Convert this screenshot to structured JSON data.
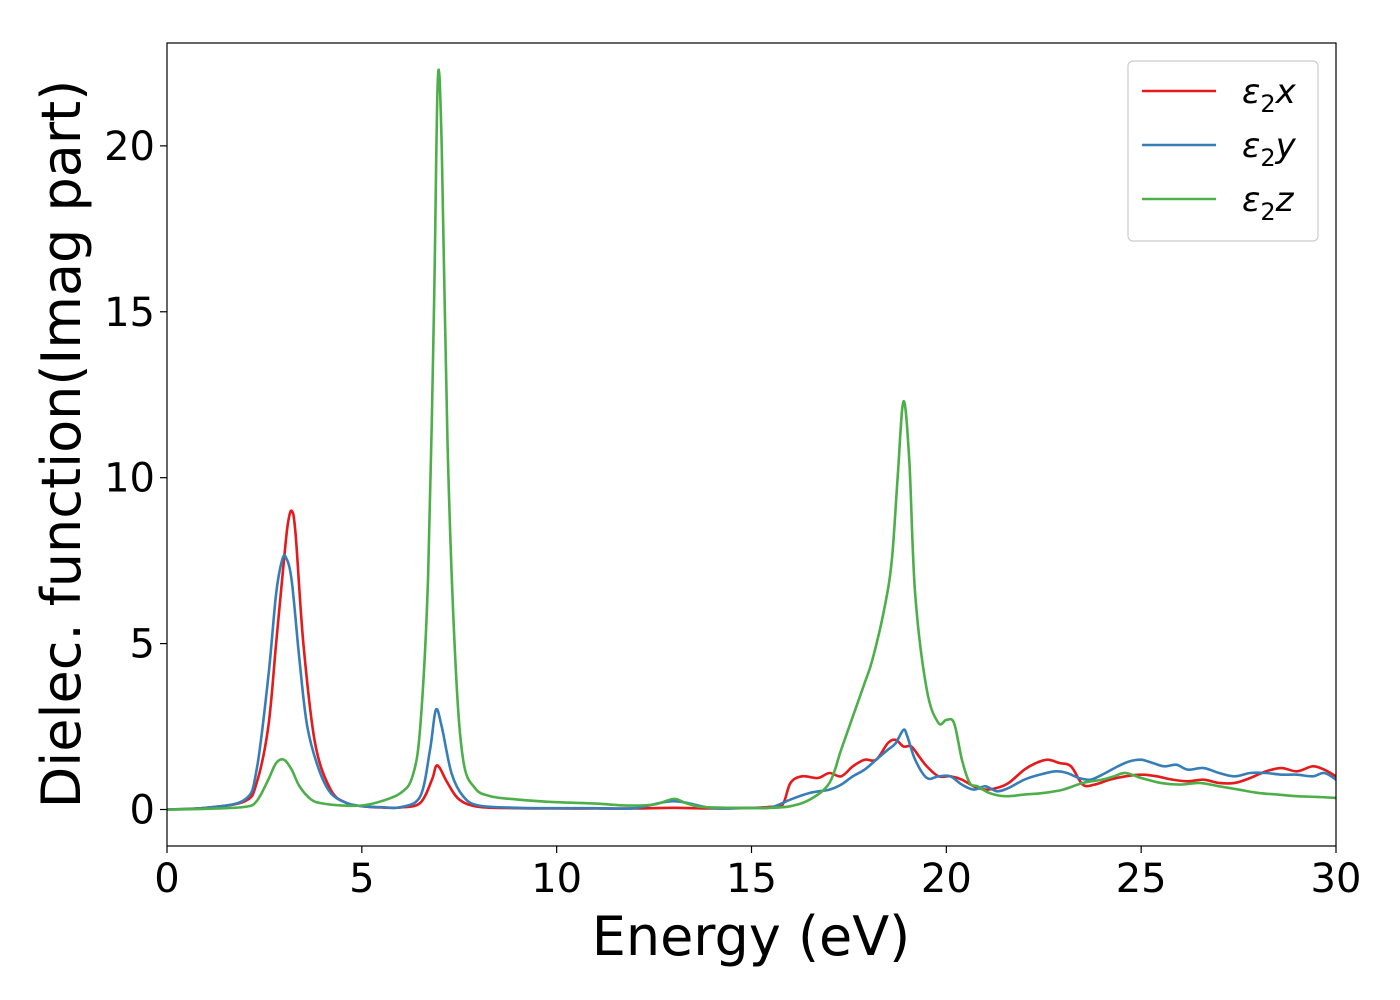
{
  "chart_data": {
    "type": "line",
    "title": "",
    "xlabel": "Energy (eV)",
    "ylabel": "Dielec. function(Imag part)",
    "xlim": [
      0,
      30
    ],
    "ylim": [
      -1.1,
      23.1
    ],
    "xticks": [
      0,
      5,
      10,
      15,
      20,
      25,
      30
    ],
    "yticks": [
      0,
      5,
      10,
      15,
      20
    ],
    "grid": false,
    "legend_position": "top-right",
    "series": [
      {
        "name": "ε₂x",
        "legend_base": "ε",
        "legend_sub": "2",
        "legend_suffix": "x",
        "color": "#e41a1c",
        "x": [
          0,
          1,
          2,
          2.3,
          2.6,
          2.8,
          3.0,
          3.1,
          3.2,
          3.3,
          3.5,
          3.8,
          4.2,
          4.6,
          5.0,
          5.5,
          6.0,
          6.5,
          6.8,
          6.9,
          7.0,
          7.2,
          7.5,
          8.0,
          9,
          10,
          11,
          12,
          13,
          14,
          15,
          15.5,
          15.8,
          16.0,
          16.3,
          16.7,
          17.0,
          17.3,
          17.6,
          17.9,
          18.2,
          18.5,
          18.7,
          18.9,
          19.1,
          19.3,
          19.5,
          19.8,
          20.1,
          20.4,
          20.7,
          21.0,
          21.3,
          21.6,
          22.0,
          22.3,
          22.6,
          22.9,
          23.2,
          23.5,
          23.8,
          24.2,
          24.6,
          25.0,
          25.4,
          25.8,
          26.2,
          26.6,
          27.0,
          27.4,
          27.8,
          28.2,
          28.6,
          29.0,
          29.4,
          29.7,
          30.0
        ],
        "y": [
          0.0,
          0.05,
          0.25,
          0.8,
          2.5,
          5.0,
          7.5,
          8.6,
          9.0,
          8.3,
          5.0,
          2.0,
          0.6,
          0.2,
          0.1,
          0.06,
          0.06,
          0.2,
          0.9,
          1.3,
          1.25,
          0.8,
          0.3,
          0.08,
          0.04,
          0.03,
          0.03,
          0.03,
          0.05,
          0.03,
          0.05,
          0.08,
          0.15,
          0.8,
          1.0,
          0.95,
          1.1,
          1.0,
          1.3,
          1.5,
          1.5,
          2.0,
          2.1,
          1.9,
          1.9,
          1.6,
          1.3,
          1.0,
          1.0,
          0.9,
          0.7,
          0.6,
          0.65,
          0.8,
          1.2,
          1.4,
          1.5,
          1.4,
          1.3,
          0.75,
          0.75,
          0.9,
          1.0,
          1.05,
          1.0,
          0.9,
          0.85,
          0.9,
          0.8,
          0.8,
          0.95,
          1.15,
          1.25,
          1.15,
          1.3,
          1.2,
          1.0
        ]
      },
      {
        "name": "ε₂y",
        "legend_base": "ε",
        "legend_sub": "2",
        "legend_suffix": "y",
        "color": "#377eb8",
        "x": [
          0,
          1,
          2,
          2.3,
          2.6,
          2.8,
          2.95,
          3.05,
          3.2,
          3.4,
          3.6,
          3.9,
          4.2,
          4.6,
          5.0,
          5.5,
          6.0,
          6.5,
          6.75,
          6.9,
          7.05,
          7.3,
          7.6,
          8.0,
          9,
          10,
          11,
          12,
          13,
          14,
          15,
          15.5,
          16.0,
          16.5,
          17.0,
          17.3,
          17.6,
          17.9,
          18.2,
          18.5,
          18.7,
          18.9,
          19.0,
          19.2,
          19.5,
          19.8,
          20.1,
          20.4,
          20.7,
          21.0,
          21.3,
          21.6,
          22.0,
          22.4,
          22.8,
          23.1,
          23.4,
          23.7,
          24.0,
          24.4,
          24.7,
          25.0,
          25.3,
          25.6,
          25.9,
          26.2,
          26.6,
          27.0,
          27.4,
          27.8,
          28.2,
          28.6,
          29.0,
          29.4,
          29.7,
          30.0
        ],
        "y": [
          0.0,
          0.05,
          0.3,
          1.2,
          4.0,
          6.5,
          7.5,
          7.6,
          6.9,
          4.5,
          2.5,
          1.2,
          0.5,
          0.2,
          0.1,
          0.07,
          0.07,
          0.4,
          1.8,
          3.0,
          2.5,
          1.1,
          0.4,
          0.12,
          0.05,
          0.04,
          0.04,
          0.04,
          0.25,
          0.04,
          0.05,
          0.06,
          0.3,
          0.5,
          0.6,
          0.75,
          1.0,
          1.2,
          1.5,
          1.8,
          2.0,
          2.4,
          2.2,
          1.5,
          0.95,
          1.0,
          1.0,
          0.75,
          0.6,
          0.7,
          0.55,
          0.65,
          0.9,
          1.05,
          1.15,
          1.1,
          0.95,
          0.9,
          1.05,
          1.3,
          1.45,
          1.5,
          1.4,
          1.3,
          1.35,
          1.2,
          1.25,
          1.1,
          1.0,
          1.1,
          1.1,
          1.05,
          1.05,
          1.0,
          1.1,
          0.9
        ]
      },
      {
        "name": "ε₂z",
        "legend_base": "ε",
        "legend_sub": "2",
        "legend_suffix": "z",
        "color": "#4daf4a",
        "x": [
          0,
          1,
          2,
          2.3,
          2.6,
          2.8,
          3.0,
          3.2,
          3.4,
          3.7,
          4.0,
          4.5,
          5.0,
          5.5,
          6.0,
          6.3,
          6.5,
          6.7,
          6.85,
          6.95,
          7.05,
          7.2,
          7.4,
          7.6,
          7.9,
          8.3,
          9,
          10,
          11,
          11.8,
          12.5,
          13.0,
          13.3,
          13.7,
          14.5,
          15.5,
          16.0,
          16.5,
          17.0,
          17.3,
          17.6,
          17.9,
          18.1,
          18.4,
          18.6,
          18.75,
          18.9,
          19.05,
          19.2,
          19.5,
          19.8,
          20.0,
          20.2,
          20.4,
          20.6,
          20.8,
          21.1,
          21.5,
          22.0,
          22.5,
          23.0,
          23.5,
          24.0,
          24.3,
          24.6,
          25.0,
          25.5,
          26.0,
          26.5,
          27.0,
          27.5,
          28.0,
          28.5,
          29.0,
          29.5,
          30.0
        ],
        "y": [
          0.0,
          0.02,
          0.08,
          0.25,
          0.9,
          1.4,
          1.5,
          1.2,
          0.7,
          0.3,
          0.18,
          0.12,
          0.12,
          0.25,
          0.5,
          1.0,
          2.5,
          7.0,
          15.0,
          22.0,
          20.0,
          11.0,
          4.5,
          1.5,
          0.65,
          0.4,
          0.3,
          0.22,
          0.18,
          0.12,
          0.15,
          0.32,
          0.2,
          0.08,
          0.05,
          0.05,
          0.1,
          0.3,
          0.8,
          1.8,
          2.8,
          3.8,
          4.5,
          6.0,
          7.5,
          10.0,
          12.3,
          10.5,
          6.5,
          3.6,
          2.6,
          2.7,
          2.6,
          1.5,
          0.8,
          0.7,
          0.5,
          0.4,
          0.45,
          0.5,
          0.6,
          0.8,
          0.9,
          1.0,
          1.1,
          0.95,
          0.8,
          0.75,
          0.8,
          0.7,
          0.6,
          0.5,
          0.45,
          0.4,
          0.38,
          0.35
        ]
      }
    ]
  }
}
